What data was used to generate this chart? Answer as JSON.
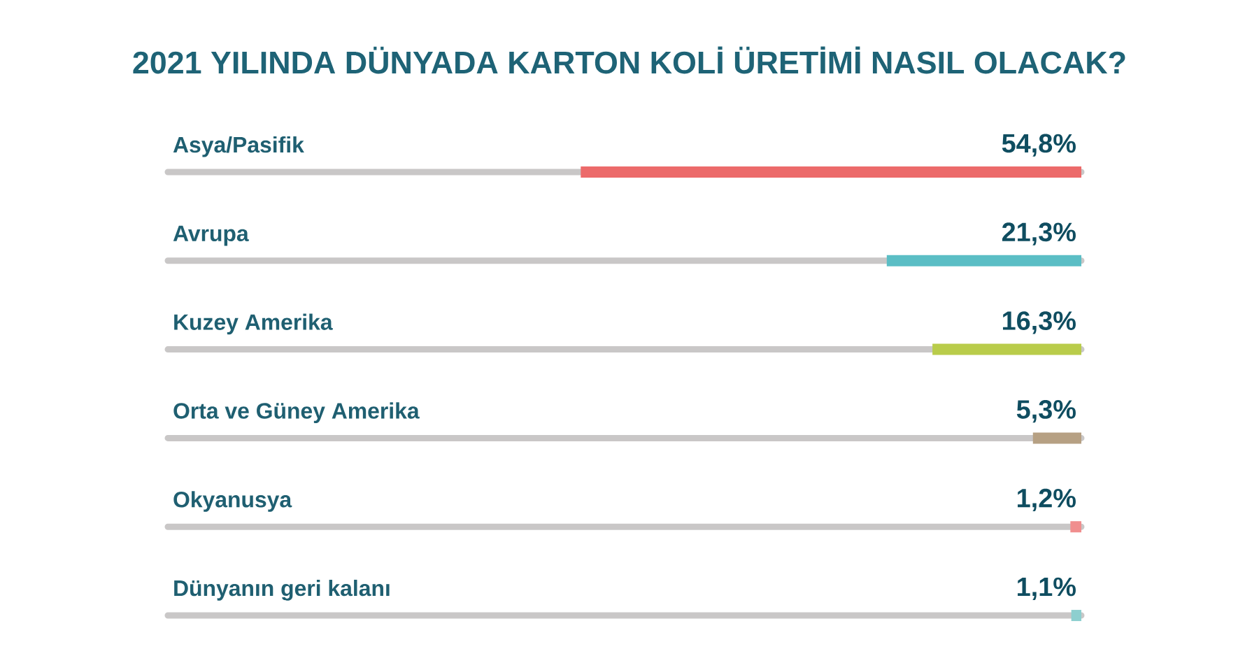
{
  "chart_data": {
    "type": "bar",
    "orientation": "horizontal",
    "title": "2021 YILINDA DÜNYADA KARTON KOLİ ÜRETİMİ NASIL OLACAK?",
    "categories": [
      "Asya/Pasifik",
      "Avrupa",
      "Kuzey Amerika",
      "Orta ve Güney Amerika",
      "Okyanusya",
      "Dünyanın geri kalanı"
    ],
    "values": [
      54.8,
      21.3,
      16.3,
      5.3,
      1.2,
      1.1
    ],
    "colors": [
      "#ec6a6a",
      "#5bbec5",
      "#b9cc4a",
      "#b6a083",
      "#f08e8e",
      "#8dcfcf"
    ],
    "value_labels": [
      "54,8%",
      "21,3%",
      "16,3%",
      "5,3%",
      "1,2%",
      "1,1%"
    ],
    "xlim": [
      100,
      0
    ],
    "grid": "y",
    "tick_labels": "y"
  }
}
